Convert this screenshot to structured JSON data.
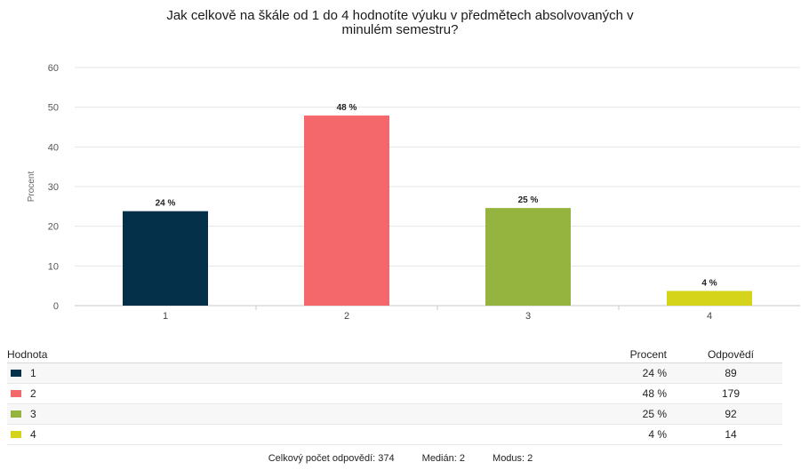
{
  "chart_data": {
    "type": "bar",
    "title": "Jak celkově na škále od 1 do 4 hodnotíte výuku v předmětech absolvovaných v minulém semestru?",
    "title_line1": "Jak celkově na škále od 1 do 4 hodnotíte výuku v předmětech absolvovaných v",
    "title_line2": "minulém semestru?",
    "ylabel": "Procent",
    "xlabel": "",
    "categories": [
      "1",
      "2",
      "3",
      "4"
    ],
    "values": [
      23.8,
      47.9,
      24.6,
      3.7
    ],
    "data_labels": [
      "24 %",
      "48 %",
      "25 %",
      "4 %"
    ],
    "colors": [
      "#05304a",
      "#f4676a",
      "#95b33f",
      "#d6d41a"
    ],
    "ylim": [
      0,
      60
    ],
    "yticks": [
      0,
      10,
      20,
      30,
      40,
      50,
      60
    ],
    "grid": true,
    "legend": "table-below"
  },
  "table": {
    "headers": {
      "hodnota": "Hodnota",
      "procent": "Procent",
      "odpovedi": "Odpovědí"
    },
    "rows": [
      {
        "label": "1",
        "procent": "24 %",
        "odpovedi": "89"
      },
      {
        "label": "2",
        "procent": "48 %",
        "odpovedi": "179"
      },
      {
        "label": "3",
        "procent": "25 %",
        "odpovedi": "92"
      },
      {
        "label": "4",
        "procent": "4 %",
        "odpovedi": "14"
      }
    ]
  },
  "summary": {
    "total": "Celkový počet odpovědí: 374",
    "median": "Medián: 2",
    "modus": "Modus: 2"
  }
}
